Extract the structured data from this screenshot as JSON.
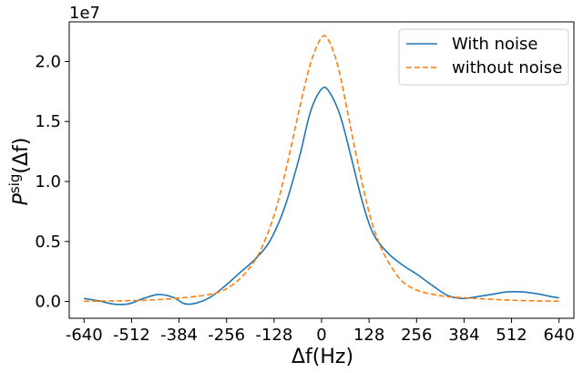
{
  "chart_data": {
    "type": "line",
    "xlabel": "Δf(Hz)",
    "ylabel_main": "P",
    "ylabel_sup": "sig",
    "ylabel_arg": "(Δf)",
    "y_offset_text": "1e7",
    "xlim": [
      -680,
      680
    ],
    "ylim": [
      -1400000,
      23300000
    ],
    "y_scale": 10000000,
    "xticks": [
      -640,
      -512,
      -384,
      -256,
      -128,
      0,
      128,
      256,
      384,
      512,
      640
    ],
    "xtick_labels": [
      "-640",
      "-512",
      "-384",
      "-256",
      "-128",
      "0",
      "128",
      "256",
      "384",
      "512",
      "640"
    ],
    "yticks": [
      0,
      5000000,
      10000000,
      15000000,
      20000000
    ],
    "ytick_labels": [
      "0.0",
      "0.5",
      "1.0",
      "1.5",
      "2.0"
    ],
    "grid": false,
    "legend_position": "upper-right",
    "series": [
      {
        "name": "With noise",
        "color": "#1f77b4",
        "style": "solid",
        "points": [
          [
            -640,
            250000
          ],
          [
            -600,
            50000
          ],
          [
            -560,
            -220000
          ],
          [
            -520,
            -200000
          ],
          [
            -480,
            250000
          ],
          [
            -440,
            580000
          ],
          [
            -400,
            350000
          ],
          [
            -370,
            -180000
          ],
          [
            -340,
            -150000
          ],
          [
            -300,
            350000
          ],
          [
            -260,
            1300000
          ],
          [
            -220,
            2400000
          ],
          [
            -180,
            3500000
          ],
          [
            -140,
            5000000
          ],
          [
            -100,
            7800000
          ],
          [
            -60,
            12000000
          ],
          [
            -30,
            15800000
          ],
          [
            0,
            17700000
          ],
          [
            20,
            17500000
          ],
          [
            50,
            15500000
          ],
          [
            80,
            12000000
          ],
          [
            110,
            8300000
          ],
          [
            140,
            5600000
          ],
          [
            180,
            4000000
          ],
          [
            220,
            3000000
          ],
          [
            260,
            2200000
          ],
          [
            300,
            1300000
          ],
          [
            340,
            500000
          ],
          [
            380,
            250000
          ],
          [
            420,
            400000
          ],
          [
            460,
            600000
          ],
          [
            500,
            800000
          ],
          [
            540,
            800000
          ],
          [
            580,
            650000
          ],
          [
            620,
            400000
          ],
          [
            640,
            300000
          ]
        ]
      },
      {
        "name": "without noise",
        "color": "#ff7f0e",
        "style": "dashed",
        "points": [
          [
            -640,
            20000
          ],
          [
            -560,
            50000
          ],
          [
            -480,
            100000
          ],
          [
            -420,
            200000
          ],
          [
            -360,
            350000
          ],
          [
            -300,
            600000
          ],
          [
            -260,
            1000000
          ],
          [
            -220,
            1900000
          ],
          [
            -180,
            3400000
          ],
          [
            -150,
            5300000
          ],
          [
            -120,
            8000000
          ],
          [
            -90,
            11800000
          ],
          [
            -60,
            16000000
          ],
          [
            -30,
            19800000
          ],
          [
            0,
            22000000
          ],
          [
            20,
            21700000
          ],
          [
            45,
            19500000
          ],
          [
            70,
            15800000
          ],
          [
            100,
            11200000
          ],
          [
            130,
            7200000
          ],
          [
            160,
            4500000
          ],
          [
            190,
            2800000
          ],
          [
            220,
            1600000
          ],
          [
            260,
            900000
          ],
          [
            300,
            600000
          ],
          [
            340,
            400000
          ],
          [
            400,
            280000
          ],
          [
            460,
            180000
          ],
          [
            520,
            100000
          ],
          [
            580,
            50000
          ],
          [
            640,
            20000
          ]
        ]
      }
    ]
  }
}
